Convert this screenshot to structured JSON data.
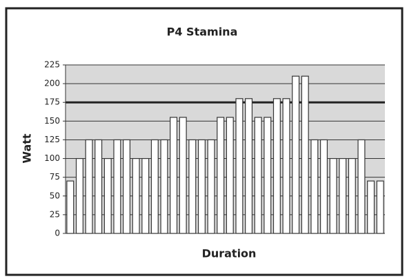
{
  "chart_data": {
    "type": "bar",
    "title": "P4 Stamina",
    "x_label": "Duration",
    "y_label": "Watt",
    "categories": [
      null,
      null,
      null,
      null,
      null,
      null,
      null,
      null,
      null,
      null,
      null,
      null,
      null,
      null,
      null,
      null,
      null,
      null,
      null,
      null,
      null,
      null,
      null,
      null,
      null,
      null,
      null,
      null,
      null,
      null,
      null,
      null,
      null,
      null
    ],
    "values": [
      70,
      100,
      125,
      125,
      100,
      125,
      125,
      100,
      100,
      125,
      125,
      155,
      155,
      125,
      125,
      125,
      155,
      155,
      180,
      180,
      155,
      155,
      180,
      180,
      210,
      210,
      125,
      125,
      100,
      100,
      100,
      125,
      70,
      70
    ],
    "color": "#ffffff",
    "ylim": [
      0,
      225
    ],
    "yticks": [
      0,
      25,
      50,
      75,
      100,
      125,
      150,
      175,
      200,
      225
    ],
    "grid": true,
    "reference_line": 175
  }
}
